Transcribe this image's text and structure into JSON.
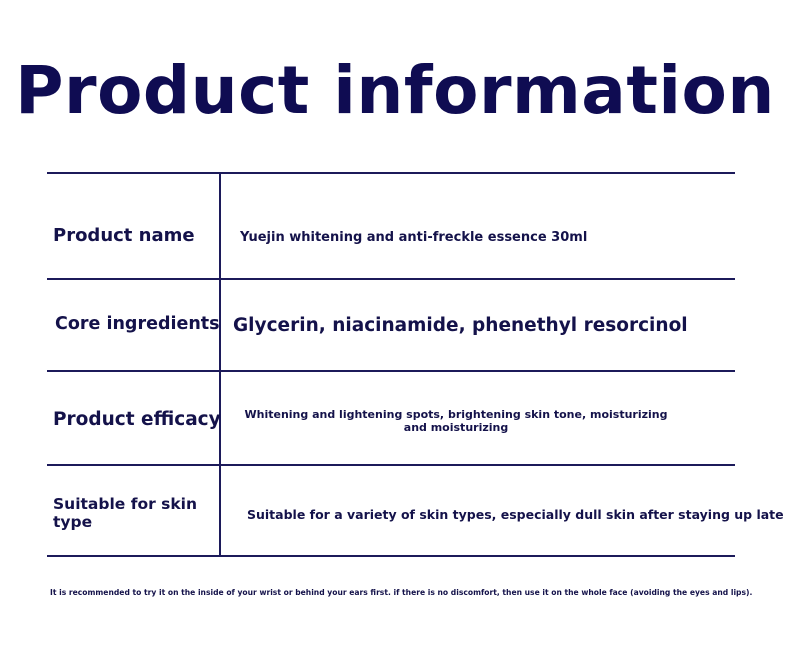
{
  "title": "Product information",
  "rows": [
    {
      "label": "Product name",
      "value": "Yuejin whitening and anti-freckle essence 30ml"
    },
    {
      "label": "Core ingredients",
      "value": "Glycerin, niacinamide, phenethyl resorcinol"
    },
    {
      "label": "Product efficacy",
      "value": "Whitening and lightening spots, brightening skin tone, moisturizing and moisturizing"
    },
    {
      "label": "Suitable for skin type",
      "value": "Suitable for a variety of skin types, especially dull skin after staying up late"
    }
  ],
  "note": "It is recommended to try it on the inside of your wrist or behind your ears first. if there is no discomfort, then use it on the whole face (avoiding the eyes and lips)."
}
